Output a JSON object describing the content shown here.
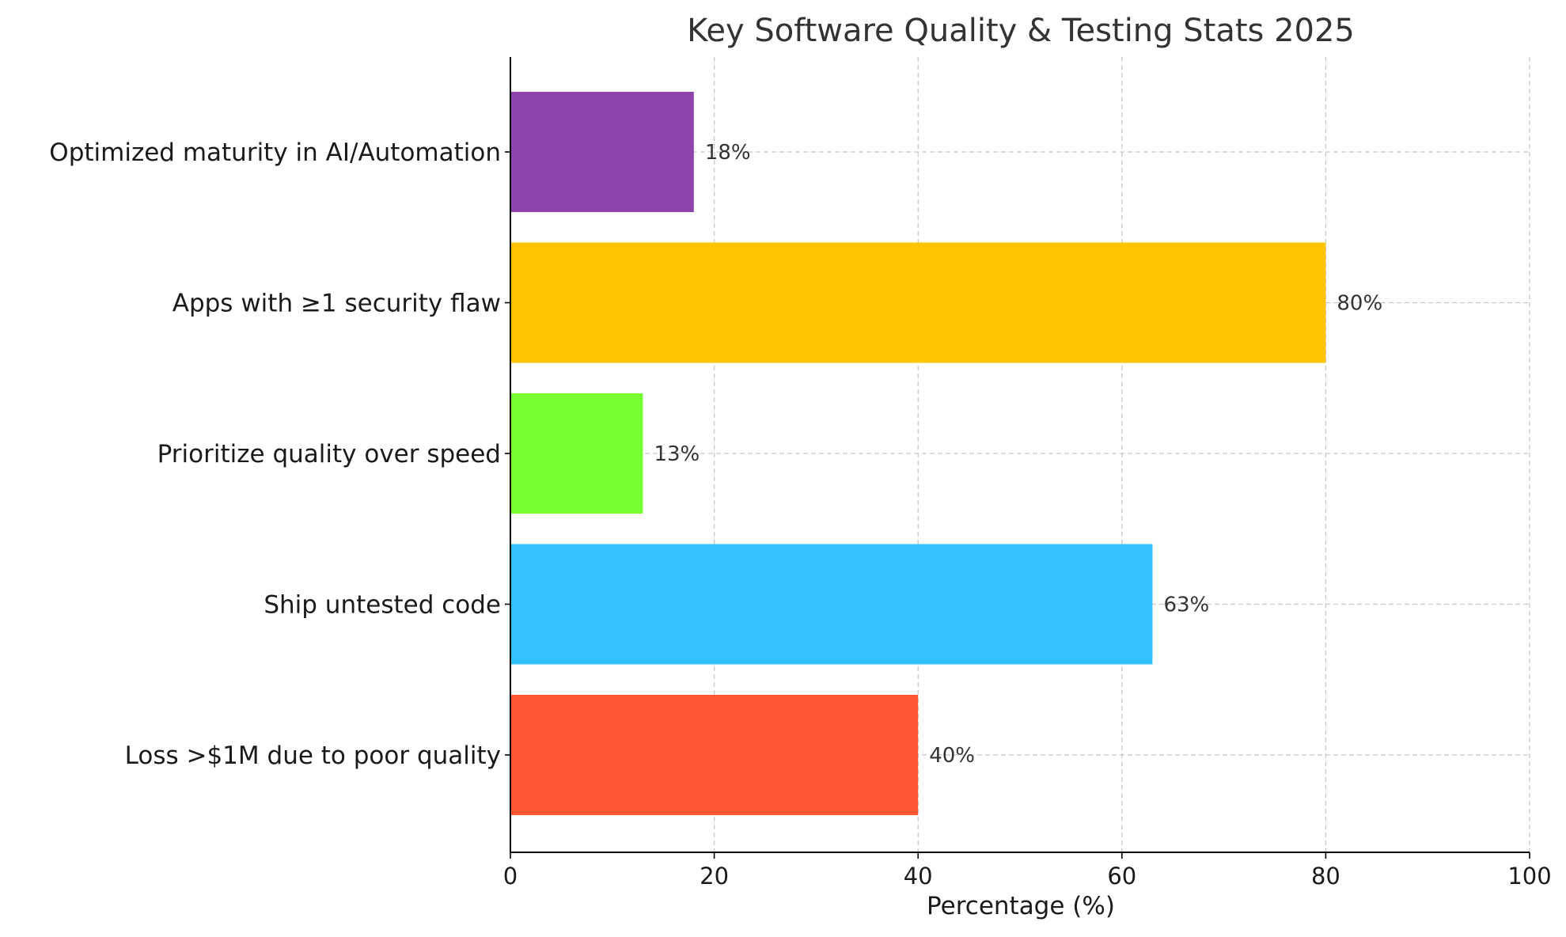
{
  "chart_data": {
    "type": "bar",
    "orientation": "horizontal",
    "title": "Key Software Quality & Testing Stats 2025",
    "xlabel": "Percentage (%)",
    "ylabel": "",
    "xlim": [
      0,
      100
    ],
    "xticks": [
      "0",
      "20",
      "40",
      "60",
      "80",
      "100"
    ],
    "grid": true,
    "categories": [
      "Optimized maturity in AI/Automation",
      "Apps with ≥1 security flaw",
      "Prioritize quality over speed",
      "Ship untested code",
      "Loss >$1M due to poor quality"
    ],
    "values": [
      18,
      80,
      13,
      63,
      40
    ],
    "value_labels": [
      "18%",
      "80%",
      "13%",
      "63%",
      "40%"
    ],
    "colors": [
      "#8e44ad",
      "#ffc300",
      "#76ff33",
      "#33c1ff",
      "#ff5733"
    ]
  }
}
